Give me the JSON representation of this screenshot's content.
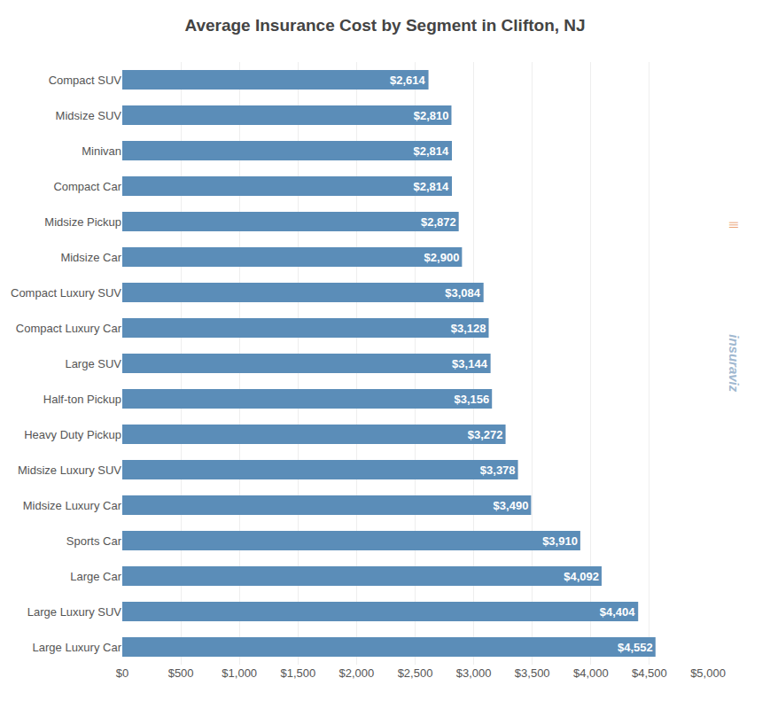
{
  "chart_data": {
    "type": "bar",
    "orientation": "horizontal",
    "title": "Average Insurance Cost by Segment in Clifton, NJ",
    "categories": [
      "Compact SUV",
      "Midsize SUV",
      "Minivan",
      "Compact Car",
      "Midsize Pickup",
      "Midsize Car",
      "Compact Luxury SUV",
      "Compact Luxury Car",
      "Large SUV",
      "Half-ton Pickup",
      "Heavy Duty Pickup",
      "Midsize Luxury SUV",
      "Midsize Luxury Car",
      "Sports Car",
      "Large Car",
      "Large Luxury SUV",
      "Large Luxury Car"
    ],
    "values": [
      2614,
      2810,
      2814,
      2814,
      2872,
      2900,
      3084,
      3128,
      3144,
      3156,
      3272,
      3378,
      3490,
      3910,
      4092,
      4404,
      4552
    ],
    "value_labels": [
      "$2,614",
      "$2,810",
      "$2,814",
      "$2,814",
      "$2,872",
      "$2,900",
      "$3,084",
      "$3,128",
      "$3,144",
      "$3,156",
      "$3,272",
      "$3,378",
      "$3,490",
      "$3,910",
      "$4,092",
      "$4,404",
      "$4,552"
    ],
    "data_labels": true,
    "color": "#5b8db8",
    "xlim": [
      0,
      5000
    ],
    "xticks": [
      {
        "value": 0,
        "label": "$0"
      },
      {
        "value": 500,
        "label": "$500"
      },
      {
        "value": 1000,
        "label": "$1,000"
      },
      {
        "value": 1500,
        "label": "$1,500"
      },
      {
        "value": 2000,
        "label": "$2,000"
      },
      {
        "value": 2500,
        "label": "$2,500"
      },
      {
        "value": 3000,
        "label": "$3,000"
      },
      {
        "value": 3500,
        "label": "$3,500"
      },
      {
        "value": 4000,
        "label": "$4,000"
      },
      {
        "value": 4500,
        "label": "$4,500"
      },
      {
        "value": 5000,
        "label": "$5,000"
      }
    ],
    "grid": true,
    "annotations": [
      {
        "text": "insuraviz",
        "color": "#a0b8d0"
      },
      {
        "text": "|||",
        "color": "#e8905a"
      }
    ]
  }
}
